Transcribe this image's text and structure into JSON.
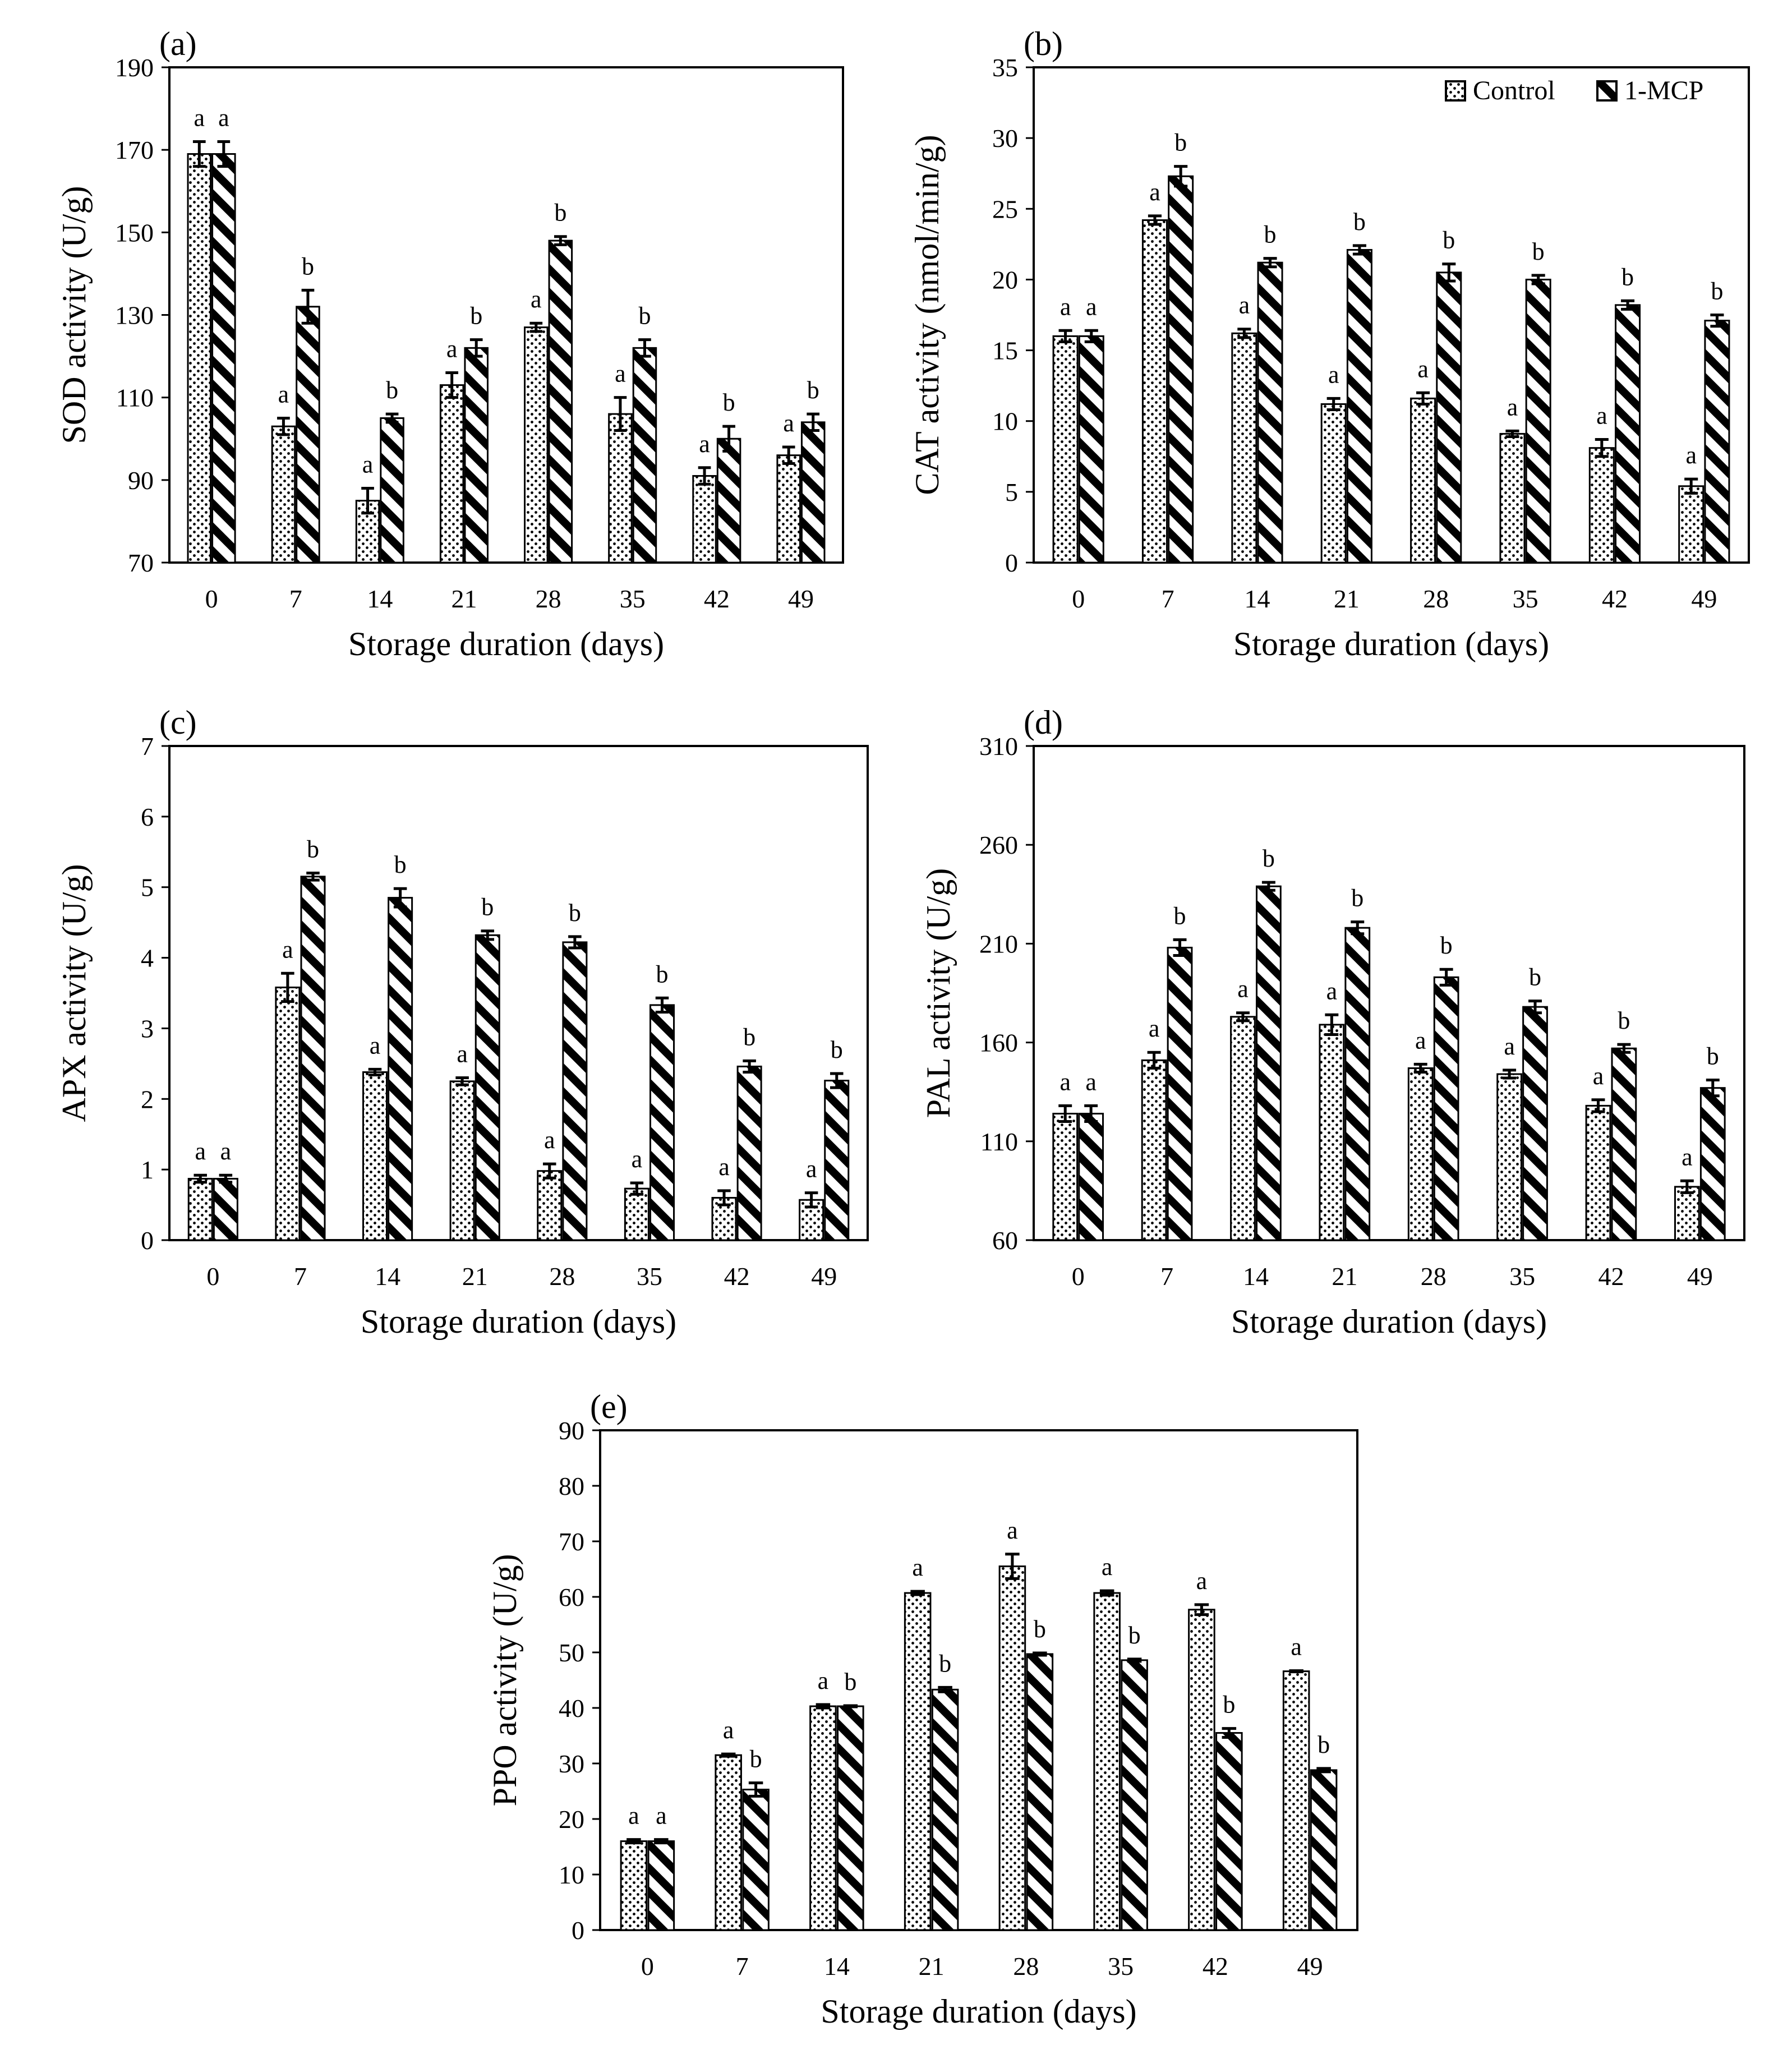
{
  "chart_data": [
    {
      "type": "bar",
      "panel_label": "(a)",
      "title": "",
      "xlabel": "Storage duration (days)",
      "ylabel": "SOD activity (U/g)",
      "ylim": [
        70,
        190
      ],
      "yticks": [
        70,
        90,
        110,
        130,
        150,
        170,
        190
      ],
      "categories": [
        "0",
        "7",
        "14",
        "21",
        "28",
        "35",
        "42",
        "49"
      ],
      "series": [
        {
          "name": "Control",
          "pattern": "dots",
          "values": [
            169,
            103,
            85,
            113,
            127,
            106,
            91,
            96
          ],
          "errors": [
            3,
            2,
            3,
            3,
            1,
            4,
            2,
            2
          ],
          "sig": [
            "a",
            "a",
            "a",
            "a",
            "a",
            "a",
            "a",
            "a"
          ]
        },
        {
          "name": "1-MCP",
          "pattern": "stripes",
          "values": [
            169,
            132,
            105,
            122,
            148,
            122,
            100,
            104
          ],
          "errors": [
            3,
            4,
            1,
            2,
            1,
            2,
            3,
            2
          ],
          "sig": [
            "a",
            "b",
            "b",
            "b",
            "b",
            "b",
            "b",
            "b"
          ]
        }
      ],
      "show_legend": false
    },
    {
      "type": "bar",
      "panel_label": "(b)",
      "title": "",
      "xlabel": "Storage duration (days)",
      "ylabel": "CAT activity (nmol/min/g)",
      "ylim": [
        0,
        35
      ],
      "yticks": [
        0,
        5,
        10,
        15,
        20,
        25,
        30,
        35
      ],
      "categories": [
        "0",
        "7",
        "14",
        "21",
        "28",
        "35",
        "42",
        "49"
      ],
      "series": [
        {
          "name": "Control",
          "pattern": "dots",
          "values": [
            16,
            24.2,
            16.2,
            11.2,
            11.6,
            9.1,
            8.1,
            5.4
          ],
          "errors": [
            0.4,
            0.3,
            0.3,
            0.4,
            0.4,
            0.2,
            0.6,
            0.5
          ],
          "sig": [
            "a",
            "a",
            "a",
            "a",
            "a",
            "a",
            "a",
            "a"
          ]
        },
        {
          "name": "1-MCP",
          "pattern": "stripes",
          "values": [
            16,
            27.3,
            21.2,
            22.1,
            20.5,
            20.0,
            18.2,
            17.1
          ],
          "errors": [
            0.4,
            0.7,
            0.3,
            0.3,
            0.6,
            0.3,
            0.3,
            0.4
          ],
          "sig": [
            "a",
            "b",
            "b",
            "b",
            "b",
            "b",
            "b",
            "b"
          ]
        }
      ],
      "show_legend": true,
      "legend_position": "top-right"
    },
    {
      "type": "bar",
      "panel_label": "(c)",
      "title": "",
      "xlabel": "Storage duration (days)",
      "ylabel": "APX activity (U/g)",
      "ylim": [
        0,
        7
      ],
      "yticks": [
        0,
        1,
        2,
        3,
        4,
        5,
        6,
        7
      ],
      "categories": [
        "0",
        "7",
        "14",
        "21",
        "28",
        "35",
        "42",
        "49"
      ],
      "series": [
        {
          "name": "Control",
          "pattern": "dots",
          "values": [
            0.87,
            3.58,
            2.38,
            2.25,
            0.98,
            0.73,
            0.6,
            0.57
          ],
          "errors": [
            0.05,
            0.2,
            0.04,
            0.05,
            0.1,
            0.08,
            0.1,
            0.1
          ],
          "sig": [
            "a",
            "a",
            "a",
            "a",
            "a",
            "a",
            "a",
            "a"
          ]
        },
        {
          "name": "1-MCP",
          "pattern": "stripes",
          "values": [
            0.87,
            5.15,
            4.85,
            4.32,
            4.22,
            3.33,
            2.46,
            2.26
          ],
          "errors": [
            0.05,
            0.05,
            0.13,
            0.06,
            0.08,
            0.1,
            0.08,
            0.1
          ],
          "sig": [
            "a",
            "b",
            "b",
            "b",
            "b",
            "b",
            "b",
            "b"
          ]
        }
      ],
      "show_legend": false
    },
    {
      "type": "bar",
      "panel_label": "(d)",
      "title": "",
      "xlabel": "Storage duration (days)",
      "ylabel": "PAL activity (U/g)",
      "ylim": [
        60,
        310
      ],
      "yticks": [
        60,
        110,
        160,
        210,
        260,
        310
      ],
      "categories": [
        "0",
        "7",
        "14",
        "21",
        "28",
        "35",
        "42",
        "49"
      ],
      "series": [
        {
          "name": "Control",
          "pattern": "dots",
          "values": [
            124,
            151,
            173,
            169,
            147,
            144,
            128,
            87
          ],
          "errors": [
            4,
            4,
            2,
            5,
            2,
            2,
            3,
            3
          ],
          "sig": [
            "a",
            "a",
            "a",
            "a",
            "a",
            "a",
            "a",
            "a"
          ]
        },
        {
          "name": "1-MCP",
          "pattern": "stripes",
          "values": [
            124,
            208,
            239,
            218,
            193,
            178,
            157,
            137
          ],
          "errors": [
            4,
            4,
            2,
            3,
            4,
            3,
            2,
            4
          ],
          "sig": [
            "a",
            "b",
            "b",
            "b",
            "b",
            "b",
            "b",
            "b"
          ]
        }
      ],
      "show_legend": false
    },
    {
      "type": "bar",
      "panel_label": "(e)",
      "title": "",
      "xlabel": "Storage duration (days)",
      "ylabel": "PPO activity (U/g)",
      "ylim": [
        0,
        90
      ],
      "yticks": [
        0,
        10,
        20,
        30,
        40,
        50,
        60,
        70,
        80,
        90
      ],
      "categories": [
        "0",
        "7",
        "14",
        "21",
        "28",
        "35",
        "42",
        "49"
      ],
      "series": [
        {
          "name": "Control",
          "pattern": "dots",
          "values": [
            16,
            31.5,
            40.3,
            60.7,
            65.5,
            60.7,
            57.7,
            46.6
          ],
          "errors": [
            0.3,
            0.2,
            0.3,
            0.3,
            2.2,
            0.4,
            0.9,
            0.1
          ],
          "sig": [
            "a",
            "a",
            "a",
            "a",
            "a",
            "a",
            "a",
            "a"
          ]
        },
        {
          "name": "1-MCP",
          "pattern": "stripes",
          "values": [
            16,
            25.3,
            40.3,
            43.3,
            49.7,
            48.6,
            35.5,
            28.8
          ],
          "errors": [
            0.3,
            1.2,
            0.1,
            0.4,
            0.2,
            0.2,
            0.8,
            0.3
          ],
          "sig": [
            "a",
            "b",
            "b",
            "b",
            "b",
            "b",
            "b",
            "b"
          ]
        }
      ],
      "show_legend": false
    }
  ]
}
